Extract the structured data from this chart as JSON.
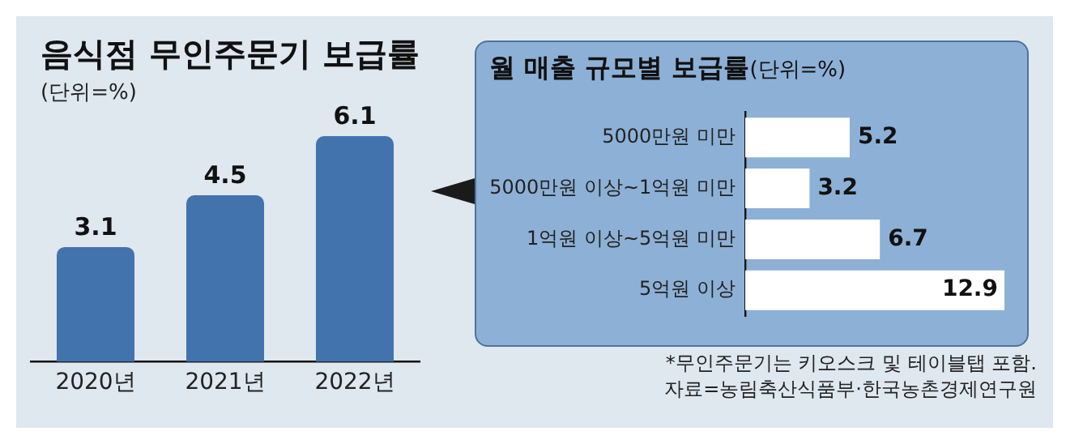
{
  "chart_data": [
    {
      "type": "bar",
      "title": "음식점 무인주문기 보급률",
      "subtitle": "(단위=%)",
      "categories": [
        "2020년",
        "2021년",
        "2022년"
      ],
      "values": [
        3.1,
        4.5,
        6.1
      ],
      "color": "#4273ad",
      "ylim": [
        0,
        6.1
      ],
      "data_labels": true,
      "tick_labels": "x"
    },
    {
      "type": "bar",
      "orientation": "horizontal",
      "title": "월 매출 규모별 보급률",
      "subtitle": "(단위=%)",
      "categories": [
        "5000만원 미만",
        "5000만원 이상~1억원 미만",
        "1억원 이상~5억원 미만",
        "5억원 이상"
      ],
      "values": [
        5.2,
        3.2,
        6.7,
        12.9
      ],
      "color": "#ffffff",
      "xlim": [
        0,
        12.9
      ],
      "data_labels": true,
      "tick_labels": "y",
      "annotations": [
        "*무인주문기는 키오스크 및 테이블탭 포함.",
        "자료=농림축산식품부·한국농촌경제연구원"
      ]
    }
  ]
}
